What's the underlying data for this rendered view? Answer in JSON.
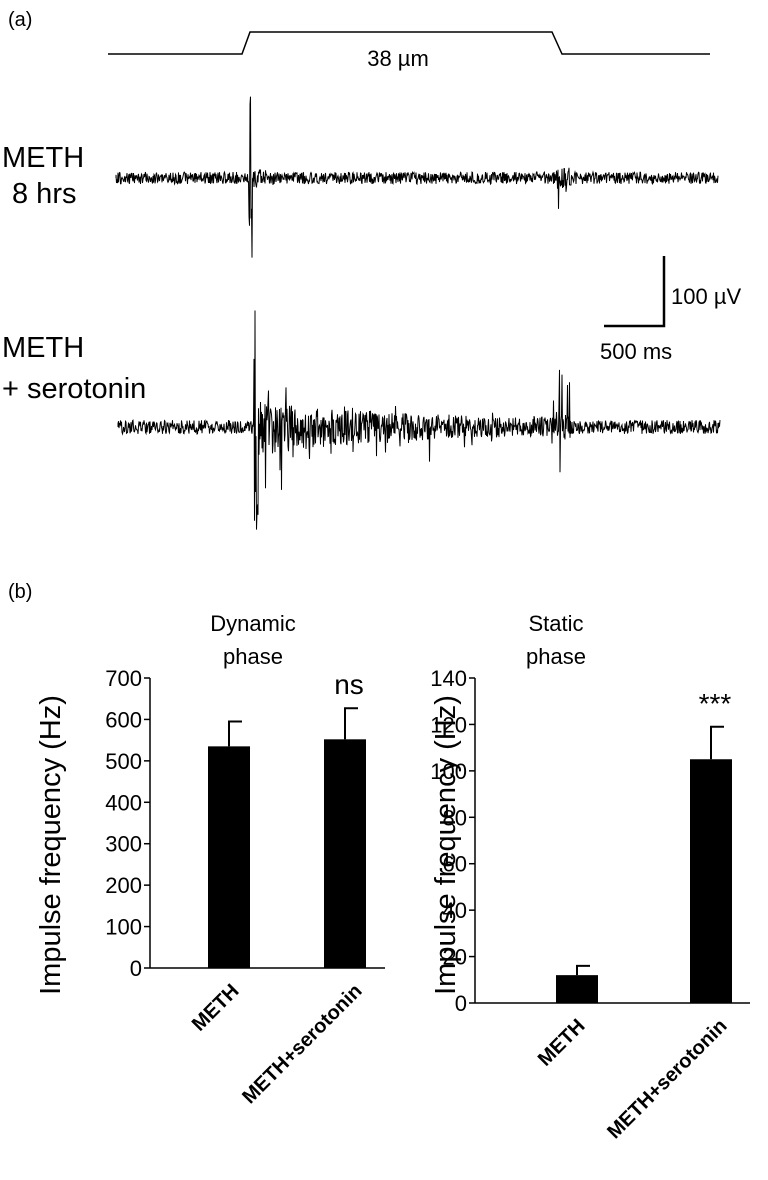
{
  "panel_a": {
    "label": "(a)",
    "stimulus_label": "38 µm",
    "traces": [
      {
        "label_line1": "METH",
        "label_line2": "8 hrs"
      },
      {
        "label_line1": "METH",
        "label_line2": "+ serotonin"
      }
    ],
    "scale_bar": {
      "vertical_label": "100 µV",
      "horizontal_label": "500 ms"
    }
  },
  "panel_b": {
    "label": "(b)"
  },
  "chart_data": [
    {
      "type": "bar",
      "title": "Dynamic phase",
      "title_line1": "Dynamic",
      "title_line2": "phase",
      "ylabel": "Impulse frequency (Hz)",
      "ylim": [
        0,
        700
      ],
      "yticks": [
        0,
        100,
        200,
        300,
        400,
        500,
        600,
        700
      ],
      "categories": [
        "METH",
        "METH+serotonin"
      ],
      "values": [
        535,
        552
      ],
      "errors": [
        60,
        75
      ],
      "annotations": [
        "",
        "ns"
      ],
      "grid": false,
      "bar_color": "#000000"
    },
    {
      "type": "bar",
      "title": "Static phase",
      "title_line1": "Static",
      "title_line2": "phase",
      "ylabel": "Impulse frequency (Hz)",
      "ylim": [
        0,
        140
      ],
      "yticks": [
        0,
        20,
        40,
        60,
        80,
        100,
        120,
        140
      ],
      "categories": [
        "METH",
        "METH+serotonin"
      ],
      "values": [
        12,
        105
      ],
      "errors": [
        4,
        14
      ],
      "annotations": [
        "",
        "***"
      ],
      "grid": false,
      "bar_color": "#000000"
    }
  ]
}
